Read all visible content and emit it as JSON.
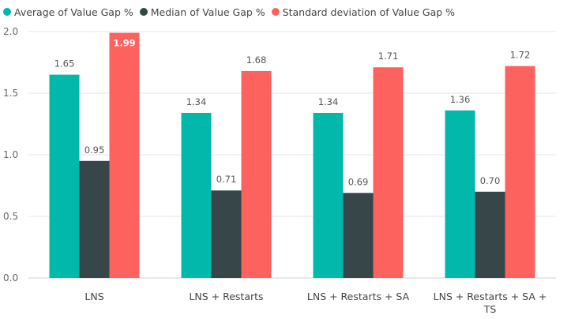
{
  "chart_data": {
    "type": "bar",
    "title": "",
    "xlabel": "",
    "ylabel": "",
    "categories": [
      "LNS",
      "LNS + Restarts",
      "LNS + Restarts + SA",
      "LNS + Restarts + SA + TS"
    ],
    "series": [
      {
        "name": "Average of Value Gap %",
        "color": "#01b8aa",
        "values": [
          1.65,
          1.34,
          1.34,
          1.36
        ],
        "labels": [
          "1.65",
          "1.34",
          "1.34",
          "1.36"
        ]
      },
      {
        "name": "Median of Value Gap %",
        "color": "#374649",
        "values": [
          0.95,
          0.71,
          0.69,
          0.7
        ],
        "labels": [
          "0.95",
          "0.71",
          "0.69",
          "0.70"
        ]
      },
      {
        "name": "Standard deviation of Value Gap %",
        "color": "#fd625e",
        "values": [
          1.99,
          1.68,
          1.71,
          1.72
        ],
        "labels": [
          "1.99",
          "1.68",
          "1.71",
          "1.72"
        ]
      }
    ],
    "ylim": [
      0,
      2.0
    ],
    "yticks": [
      "0.0",
      "0.5",
      "1.0",
      "1.5",
      "2.0"
    ],
    "grid": true,
    "legend_position": "top-left"
  }
}
